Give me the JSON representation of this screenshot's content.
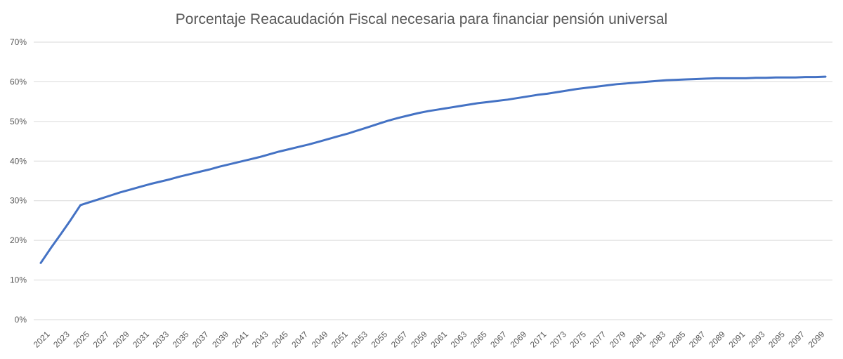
{
  "chart_data": {
    "type": "line",
    "title": "Porcentaje Reacaudación Fiscal necesaria para financiar pensión universal",
    "xlabel": "",
    "ylabel": "",
    "ylim": [
      0,
      70
    ],
    "y_ticks": [
      "0%",
      "10%",
      "20%",
      "30%",
      "40%",
      "50%",
      "60%",
      "70%"
    ],
    "x_tick_labels": [
      "2021",
      "2023",
      "2025",
      "2027",
      "2029",
      "2031",
      "2033",
      "2035",
      "2037",
      "2039",
      "2041",
      "2043",
      "2045",
      "2047",
      "2049",
      "2051",
      "2053",
      "2055",
      "2057",
      "2059",
      "2061",
      "2063",
      "2065",
      "2067",
      "2069",
      "2071",
      "2073",
      "2075",
      "2077",
      "2079",
      "2081",
      "2083",
      "2085",
      "2087",
      "2089",
      "2091",
      "2093",
      "2095",
      "2097",
      "2099"
    ],
    "grid": true,
    "legend": "none",
    "series_color": "#4472c4",
    "series": [
      {
        "x": [
          2021,
          2022,
          2023,
          2024,
          2025,
          2026,
          2027,
          2028,
          2029,
          2030,
          2031,
          2032,
          2033,
          2034,
          2035,
          2036,
          2037,
          2038,
          2039,
          2040,
          2041,
          2042,
          2043,
          2044,
          2045,
          2046,
          2047,
          2048,
          2049,
          2050,
          2051,
          2052,
          2053,
          2054,
          2055,
          2056,
          2057,
          2058,
          2059,
          2060,
          2061,
          2062,
          2063,
          2064,
          2065,
          2066,
          2067,
          2068,
          2069,
          2070,
          2071,
          2072,
          2073,
          2074,
          2075,
          2076,
          2077,
          2078,
          2079,
          2080,
          2081,
          2082,
          2083,
          2084,
          2085,
          2086,
          2087,
          2088,
          2089,
          2090,
          2091,
          2092,
          2093,
          2094,
          2095,
          2096,
          2097,
          2098,
          2099,
          2100
        ],
        "values": [
          14.3,
          18.0,
          21.5,
          25.1,
          28.9,
          29.7,
          30.5,
          31.3,
          32.1,
          32.8,
          33.5,
          34.2,
          34.8,
          35.4,
          36.1,
          36.7,
          37.3,
          37.9,
          38.6,
          39.2,
          39.8,
          40.4,
          41.0,
          41.7,
          42.4,
          43.0,
          43.6,
          44.2,
          44.9,
          45.6,
          46.3,
          47.0,
          47.8,
          48.6,
          49.4,
          50.2,
          50.9,
          51.5,
          52.1,
          52.6,
          53.0,
          53.4,
          53.8,
          54.2,
          54.6,
          54.9,
          55.2,
          55.5,
          55.9,
          56.3,
          56.7,
          57.0,
          57.4,
          57.8,
          58.2,
          58.5,
          58.8,
          59.1,
          59.4,
          59.6,
          59.8,
          60.0,
          60.2,
          60.4,
          60.5,
          60.6,
          60.7,
          60.8,
          60.9,
          60.9,
          60.9,
          60.9,
          61.0,
          61.0,
          61.1,
          61.1,
          61.1,
          61.2,
          61.2,
          61.3
        ]
      }
    ]
  }
}
